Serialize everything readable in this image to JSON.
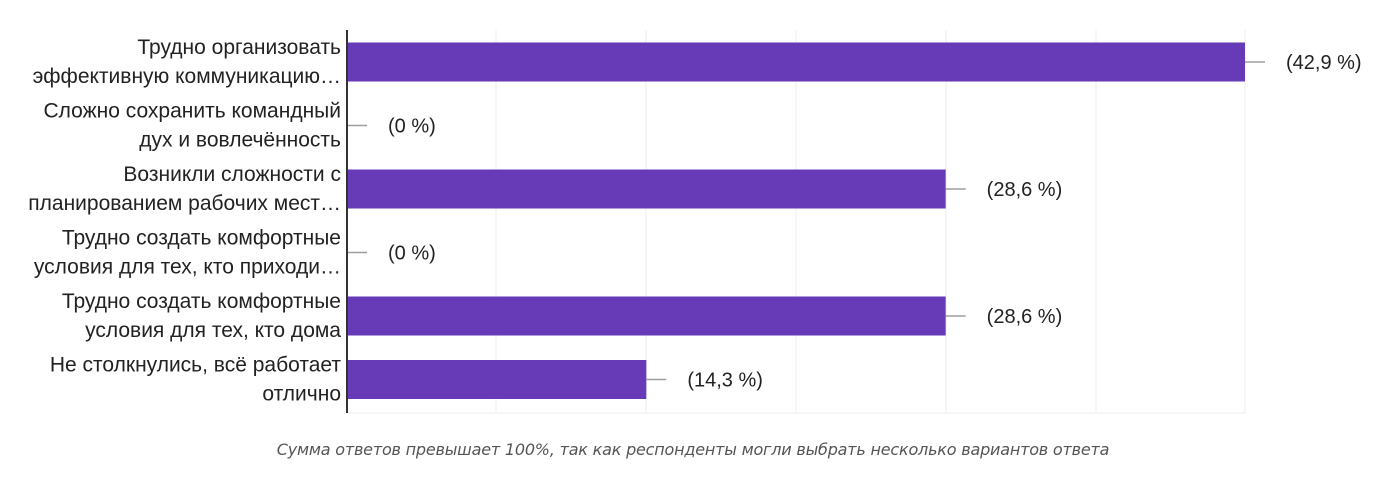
{
  "chart_data": {
    "type": "bar",
    "orientation": "horizontal",
    "categories": [
      [
        "Трудно организовать",
        "эффективную коммуникацию…"
      ],
      [
        "Сложно сохранить командный",
        "дух и вовлечённость"
      ],
      [
        "Возникли сложности с",
        "планированием рабочих мест…"
      ],
      [
        "Трудно создать комфортные",
        "условия для тех, кто приходи…"
      ],
      [
        "Трудно создать комфортные",
        "условия для тех, кто дома"
      ],
      [
        "Не столкнулись, всё работает",
        "отлично"
      ]
    ],
    "values": [
      42.9,
      0,
      28.6,
      0,
      28.6,
      14.3
    ],
    "value_labels": [
      "(42,9 %)",
      "(0 %)",
      "(28,6 %)",
      "(0 %)",
      "(28,6 %)",
      "(14,3 %)"
    ],
    "xlim": [
      0,
      42.9
    ],
    "grid": true,
    "colors": {
      "bar": "#673AB7",
      "grid": "#EEEEEE",
      "axis": "#333333",
      "leader": "#9E9E9E"
    }
  },
  "footnote": "Сумма ответов превышает 100%, так как респонденты могли выбрать несколько вариантов ответа"
}
